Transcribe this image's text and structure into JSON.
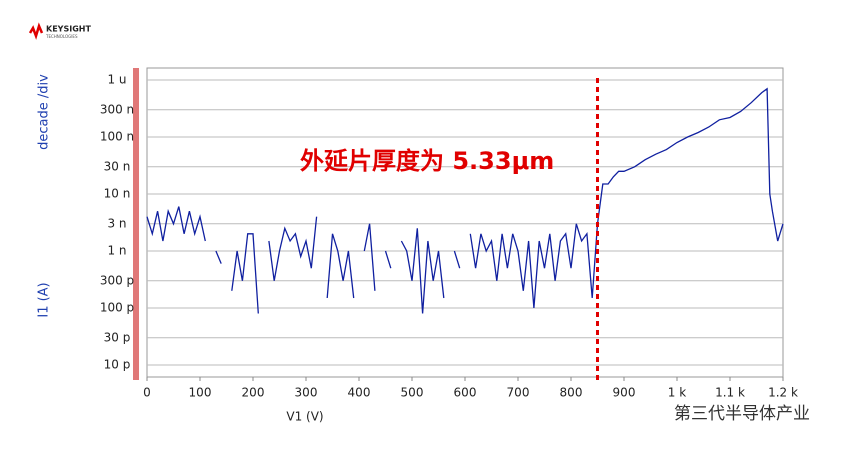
{
  "logo": {
    "name": "KEYSIGHT",
    "sub": "TECHNOLOGIES"
  },
  "watermark": "第三代半导体产业",
  "chart_data": {
    "type": "line",
    "y_label_top": "decade /div",
    "ylabel": "I1 (A)",
    "xlabel": "V1 (V)",
    "annotation": "外延片厚度为 5.33μm",
    "yscale": "log",
    "grid": true,
    "xlim": [
      0,
      1200
    ],
    "ylim": [
      1e-11,
      1e-06
    ],
    "xticks": [
      0,
      100,
      200,
      300,
      400,
      500,
      600,
      700,
      800,
      900,
      {
        "value": 1000,
        "label": "1 k"
      },
      {
        "value": 1100,
        "label": "1.1 k"
      },
      {
        "value": 1200,
        "label": "1.2 k"
      }
    ],
    "yticks": [
      {
        "value": 1e-06,
        "label": "1 u"
      },
      {
        "value": 3e-07,
        "label": "300 n"
      },
      {
        "value": 1e-07,
        "label": "100 n"
      },
      {
        "value": 3e-08,
        "label": "30 n"
      },
      {
        "value": 1e-08,
        "label": "10 n"
      },
      {
        "value": 3e-09,
        "label": "3 n"
      },
      {
        "value": 1e-09,
        "label": "1 n"
      },
      {
        "value": 3e-10,
        "label": "300 p"
      },
      {
        "value": 1e-10,
        "label": "100 p"
      },
      {
        "value": 3e-11,
        "label": "30 p"
      },
      {
        "value": 1e-11,
        "label": "10 p"
      }
    ],
    "vline": {
      "value": 850,
      "color": "#e00000"
    },
    "x": [
      0,
      10,
      20,
      30,
      40,
      50,
      60,
      70,
      80,
      90,
      100,
      110,
      120,
      130,
      140,
      150,
      160,
      170,
      180,
      190,
      200,
      210,
      220,
      230,
      240,
      250,
      260,
      270,
      280,
      290,
      300,
      310,
      320,
      330,
      340,
      350,
      360,
      370,
      380,
      390,
      400,
      410,
      420,
      430,
      440,
      450,
      460,
      470,
      480,
      490,
      500,
      510,
      520,
      530,
      540,
      550,
      560,
      570,
      580,
      590,
      600,
      610,
      620,
      630,
      640,
      650,
      660,
      670,
      680,
      690,
      700,
      710,
      720,
      730,
      740,
      750,
      760,
      770,
      780,
      790,
      800,
      810,
      820,
      830,
      840,
      850,
      860,
      870,
      880,
      890,
      900,
      920,
      940,
      960,
      980,
      1000,
      1020,
      1040,
      1060,
      1080,
      1100,
      1120,
      1140,
      1160,
      1170,
      1175,
      1180,
      1190,
      1200
    ],
    "series": [
      {
        "name": "I1",
        "color": "#1020a0",
        "values": [
          4e-09,
          2e-09,
          5e-09,
          1.5e-09,
          5e-09,
          3e-09,
          6e-09,
          2e-09,
          5e-09,
          2e-09,
          4e-09,
          1.5e-09,
          null,
          1e-09,
          6e-10,
          null,
          2e-10,
          1e-09,
          3e-10,
          2e-09,
          2e-09,
          8e-11,
          null,
          1.5e-09,
          3e-10,
          1e-09,
          2.5e-09,
          1.5e-09,
          2e-09,
          8e-10,
          1.5e-09,
          5e-10,
          4e-09,
          null,
          1.5e-10,
          2e-09,
          1e-09,
          3e-10,
          1e-09,
          1.5e-10,
          null,
          1e-09,
          3e-09,
          2e-10,
          null,
          1e-09,
          5e-10,
          null,
          1.5e-09,
          1e-09,
          3e-10,
          2.5e-09,
          8e-11,
          1.5e-09,
          3e-10,
          1e-09,
          1.5e-10,
          null,
          1e-09,
          5e-10,
          null,
          2e-09,
          5e-10,
          2e-09,
          1e-09,
          1.5e-09,
          3e-10,
          2e-09,
          5e-10,
          2e-09,
          1e-09,
          2e-10,
          1.5e-09,
          1e-10,
          1.5e-09,
          5e-10,
          2e-09,
          3e-10,
          1.5e-09,
          2e-09,
          5e-10,
          3e-09,
          1.5e-09,
          2e-09,
          1.5e-10,
          3e-09,
          1.5e-08,
          1.5e-08,
          2e-08,
          2.5e-08,
          2.5e-08,
          3e-08,
          4e-08,
          5e-08,
          6e-08,
          8e-08,
          1e-07,
          1.2e-07,
          1.5e-07,
          2e-07,
          2.2e-07,
          2.8e-07,
          4e-07,
          6e-07,
          7e-07,
          1e-08,
          5e-09,
          1.5e-09,
          3e-09
        ]
      }
    ]
  }
}
